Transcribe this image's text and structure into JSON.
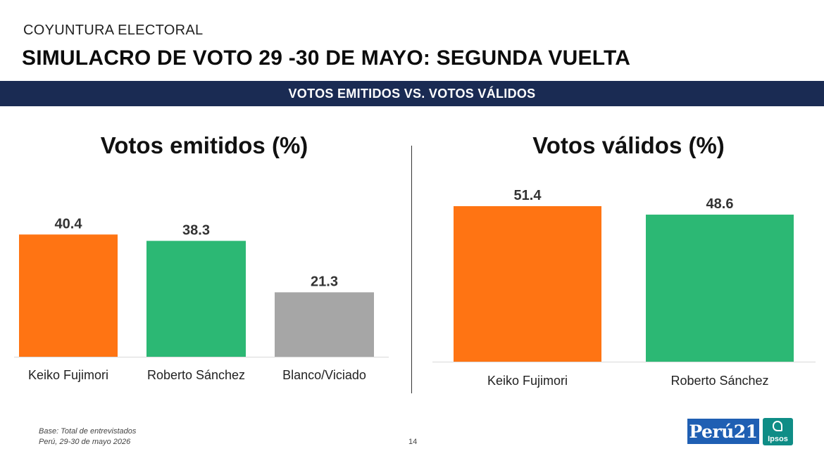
{
  "header": {
    "supertitle": "COYUNTURA ELECTORAL",
    "title": "SIMULACRO DE VOTO 29 -30 DE MAYO: SEGUNDA VUELTA",
    "band": "VOTOS EMITIDOS VS. VOTOS VÁLIDOS"
  },
  "chart_data": [
    {
      "type": "bar",
      "title": "Votos emitidos (%)",
      "categories": [
        "Keiko Fujimori",
        "Roberto Sánchez",
        "Blanco/Viciado"
      ],
      "values": [
        40.4,
        38.3,
        21.3
      ],
      "value_labels": [
        "40.4",
        "38.3",
        "21.3"
      ],
      "colors": [
        "#ff7413",
        "#2cb874",
        "#a6a6a6"
      ],
      "ylim": [
        0,
        100
      ],
      "grid": false,
      "legend": "none"
    },
    {
      "type": "bar",
      "title": "Votos válidos (%)",
      "categories": [
        "Keiko Fujimori",
        "Roberto Sánchez"
      ],
      "values": [
        51.4,
        48.6
      ],
      "value_labels": [
        "51.4",
        "48.6"
      ],
      "colors": [
        "#ff7413",
        "#2cb874"
      ],
      "ylim": [
        0,
        100
      ],
      "grid": false,
      "legend": "none"
    }
  ],
  "footer": {
    "base_line1": "Base: Total de entrevistados",
    "base_line2": "Perú, 29-30 de mayo 2026",
    "page_number": "14",
    "logo_peru21": "Perú21",
    "logo_ipsos": "Ipsos"
  }
}
